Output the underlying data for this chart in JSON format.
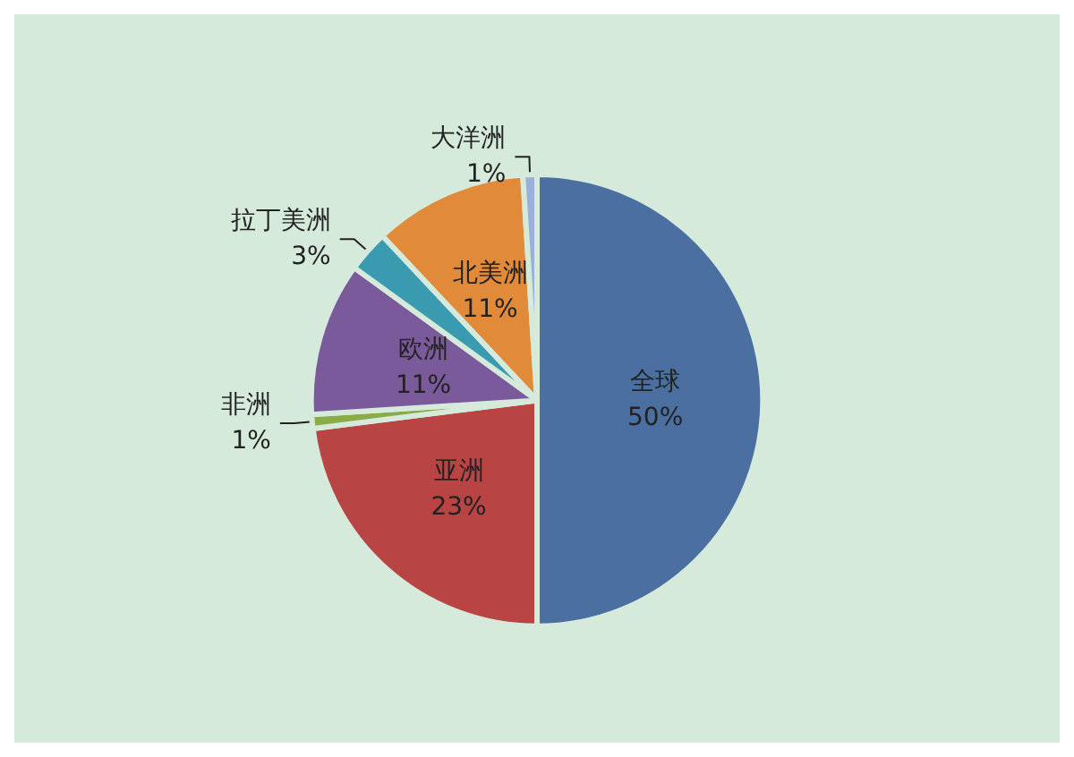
{
  "chart_data": {
    "type": "pie",
    "categories": [
      "全球",
      "亚洲",
      "非洲",
      "欧洲",
      "拉丁美洲",
      "北美洲",
      "大洋洲"
    ],
    "values": [
      50,
      23,
      1,
      11,
      3,
      11,
      1
    ],
    "value_labels": [
      "50%",
      "23%",
      "1%",
      "11%",
      "3%",
      "11%",
      "1%"
    ],
    "colors": [
      "#4a6fa0",
      "#b84444",
      "#8aab48",
      "#7a5a9a",
      "#3a9ab0",
      "#e08a3a",
      "#9ab0d8"
    ]
  }
}
